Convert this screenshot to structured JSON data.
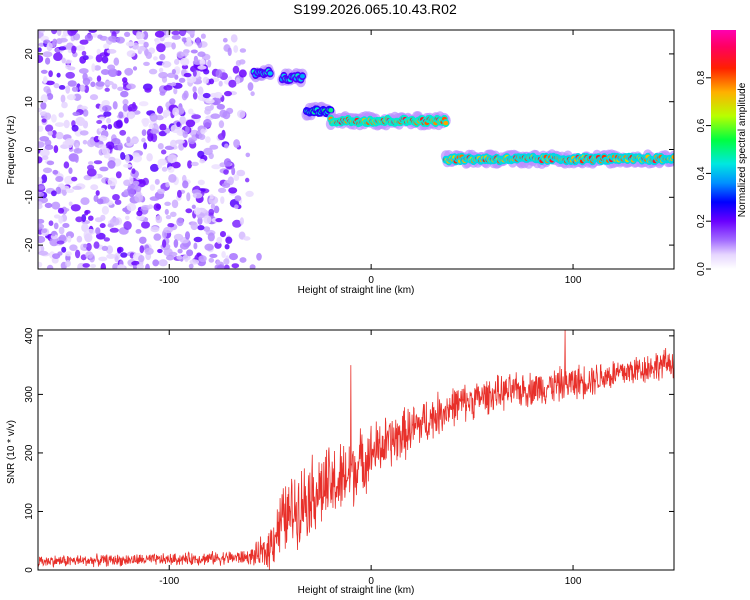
{
  "title": "S199.2026.065.10.43.R02",
  "colors": {
    "axis": "#000000",
    "snr_line": "#e8302a",
    "colormap": [
      "#ffffff",
      "#e9d8ff",
      "#a070ff",
      "#6a00ff",
      "#0000ff",
      "#00bfff",
      "#00ffb0",
      "#00ff00",
      "#ffff00",
      "#ff8000",
      "#ff0000",
      "#ff00a0"
    ]
  },
  "chart_data": [
    {
      "type": "heatmap",
      "name": "spectrogram",
      "xlabel": "Height of straight line (km)",
      "ylabel": "Frequency (Hz)",
      "xlim": [
        -165,
        150
      ],
      "ylim": [
        -25,
        25
      ],
      "xticks": [
        -100,
        0,
        100
      ],
      "xtick_labels": [
        "-100",
        "0",
        "100"
      ],
      "yticks": [
        -20,
        -10,
        0,
        10,
        20
      ],
      "ytick_labels": [
        "-20",
        "-10",
        "0",
        "10",
        "20"
      ],
      "noise_region_x": [
        -165,
        -60
      ],
      "features": [
        {
          "x": [
            -58,
            -50
          ],
          "y": 16,
          "level": 0.45
        },
        {
          "x": [
            -44,
            -34
          ],
          "y": 15,
          "level": 0.45
        },
        {
          "x": [
            -32,
            -20
          ],
          "y": 8,
          "level": 0.5
        },
        {
          "x": [
            -20,
            37
          ],
          "y": 6,
          "level": 0.9
        },
        {
          "x": [
            37,
            150
          ],
          "y": -2,
          "level": 0.85
        }
      ]
    },
    {
      "type": "colorbar",
      "label": "Normalized spectral amplitude",
      "range": [
        0,
        1
      ],
      "ticks": [
        0.0,
        0.2,
        0.4,
        0.6,
        0.8
      ],
      "tick_labels": [
        "0.0",
        "0.2",
        "0.4",
        "0.6",
        "0.8"
      ]
    },
    {
      "type": "line",
      "name": "snr",
      "xlabel": "Height of straight line (km)",
      "ylabel": "SNR (10 * v/v)",
      "xlim": [
        -165,
        150
      ],
      "ylim": [
        0,
        410
      ],
      "xticks": [
        -100,
        0,
        100
      ],
      "xtick_labels": [
        "-100",
        "0",
        "100"
      ],
      "yticks": [
        0,
        100,
        200,
        300,
        400
      ],
      "ytick_labels": [
        "0",
        "100",
        "200",
        "300",
        "400"
      ],
      "trend_x": [
        -165,
        -100,
        -60,
        -52,
        -45,
        -30,
        -15,
        0,
        20,
        40,
        60,
        100,
        150
      ],
      "trend_y": [
        15,
        18,
        22,
        30,
        80,
        130,
        150,
        200,
        240,
        280,
        300,
        320,
        355
      ],
      "noise_amplitude": [
        12,
        12,
        15,
        40,
        70,
        80,
        80,
        60,
        50,
        40,
        35,
        35,
        30
      ],
      "spikes": [
        {
          "x": -10,
          "y": 350
        },
        {
          "x": 96,
          "y": 410
        }
      ]
    }
  ]
}
